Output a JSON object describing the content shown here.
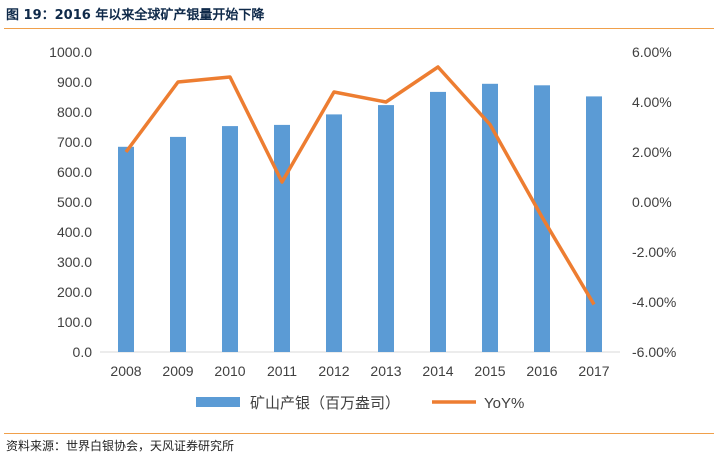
{
  "header": {
    "title": "图 19：2016 年以来全球矿产银量开始下降"
  },
  "footer": {
    "source": "资料来源：世界白银协会，天风证券研究所"
  },
  "colors": {
    "bar": "#5b9bd5",
    "line": "#ed7d31",
    "rule": "#f0a04b"
  },
  "chart_data": {
    "type": "bar",
    "title": "",
    "categories": [
      "2008",
      "2009",
      "2010",
      "2011",
      "2012",
      "2013",
      "2014",
      "2015",
      "2016",
      "2017"
    ],
    "series": [
      {
        "name": "矿山产银（百万盎司）",
        "type": "bar",
        "axis": "left",
        "values": [
          684,
          717,
          753,
          757,
          792,
          823,
          867,
          894,
          889,
          852
        ]
      },
      {
        "name": "YoY%",
        "type": "line",
        "axis": "right",
        "values": [
          2.0,
          4.8,
          5.0,
          0.8,
          4.4,
          4.0,
          5.4,
          3.1,
          -0.6,
          -4.1
        ]
      }
    ],
    "yLeft": {
      "min": 0,
      "max": 1000,
      "step": 100,
      "tick_labels": [
        "0.0",
        "100.0",
        "200.0",
        "300.0",
        "400.0",
        "500.0",
        "600.0",
        "700.0",
        "800.0",
        "900.0",
        "1000.0"
      ]
    },
    "yRight": {
      "min": -6,
      "max": 6,
      "step": 2,
      "tick_labels": [
        "-6.00%",
        "-4.00%",
        "-2.00%",
        "0.00%",
        "2.00%",
        "4.00%",
        "6.00%"
      ]
    },
    "grid": false,
    "legend": "bottom"
  }
}
